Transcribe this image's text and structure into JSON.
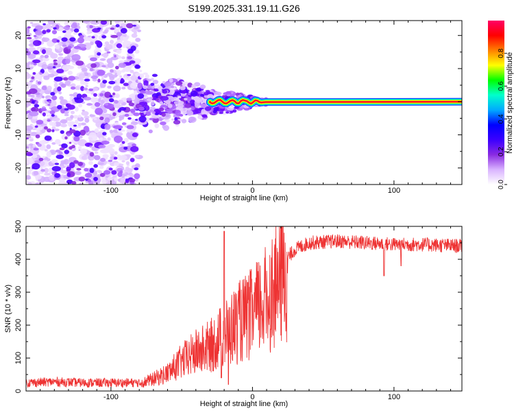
{
  "chart_data": [
    {
      "type": "heatmap",
      "title": "S199.2025.331.19.11.G26",
      "xlabel": "Height of straight line (km)",
      "ylabel": "Frequency (Hz)",
      "xlim": [
        -160,
        148
      ],
      "ylim": [
        -25,
        24.5
      ],
      "xticks": [
        -100,
        0,
        100
      ],
      "yticks": [
        -20,
        -10,
        0,
        10,
        20
      ],
      "tone_frequency_hz": 0,
      "tone_visible_from_km": -30,
      "colorbar": {
        "label": "Normalized spectral amplitude",
        "range": [
          0,
          1
        ],
        "ticks": [
          0.0,
          0.2,
          0.4,
          0.6,
          0.8
        ],
        "colors": [
          "#ffffff",
          "#d9b3ff",
          "#8a2be2",
          "#3b00ff",
          "#0000ff",
          "#00aaff",
          "#00ffcc",
          "#00ff00",
          "#ffff00",
          "#ff8000",
          "#ff0000",
          "#ff0066"
        ]
      }
    },
    {
      "type": "line",
      "title": "",
      "xlabel": "Height of straight line (km)",
      "ylabel": "SNR (10 * v/v)",
      "xlim": [
        -160,
        148
      ],
      "ylim": [
        0,
        500
      ],
      "xticks": [
        -100,
        0,
        100
      ],
      "yticks": [
        0,
        100,
        200,
        300,
        400,
        500
      ],
      "color": "#ee3333",
      "series": [
        {
          "name": "SNR",
          "x": [
            -160,
            -140,
            -120,
            -100,
            -80,
            -70,
            -60,
            -50,
            -40,
            -30,
            -20,
            -10,
            0,
            10,
            20,
            30,
            40,
            60,
            80,
            100,
            120,
            148
          ],
          "values": [
            25,
            28,
            25,
            25,
            25,
            40,
            60,
            100,
            130,
            150,
            190,
            230,
            260,
            310,
            380,
            430,
            450,
            455,
            450,
            445,
            445,
            440
          ],
          "spikes": [
            [
              -20,
              485
            ],
            [
              -22,
              40
            ],
            [
              -17,
              20
            ],
            [
              93,
              350
            ],
            [
              105,
              380
            ]
          ]
        }
      ]
    }
  ]
}
